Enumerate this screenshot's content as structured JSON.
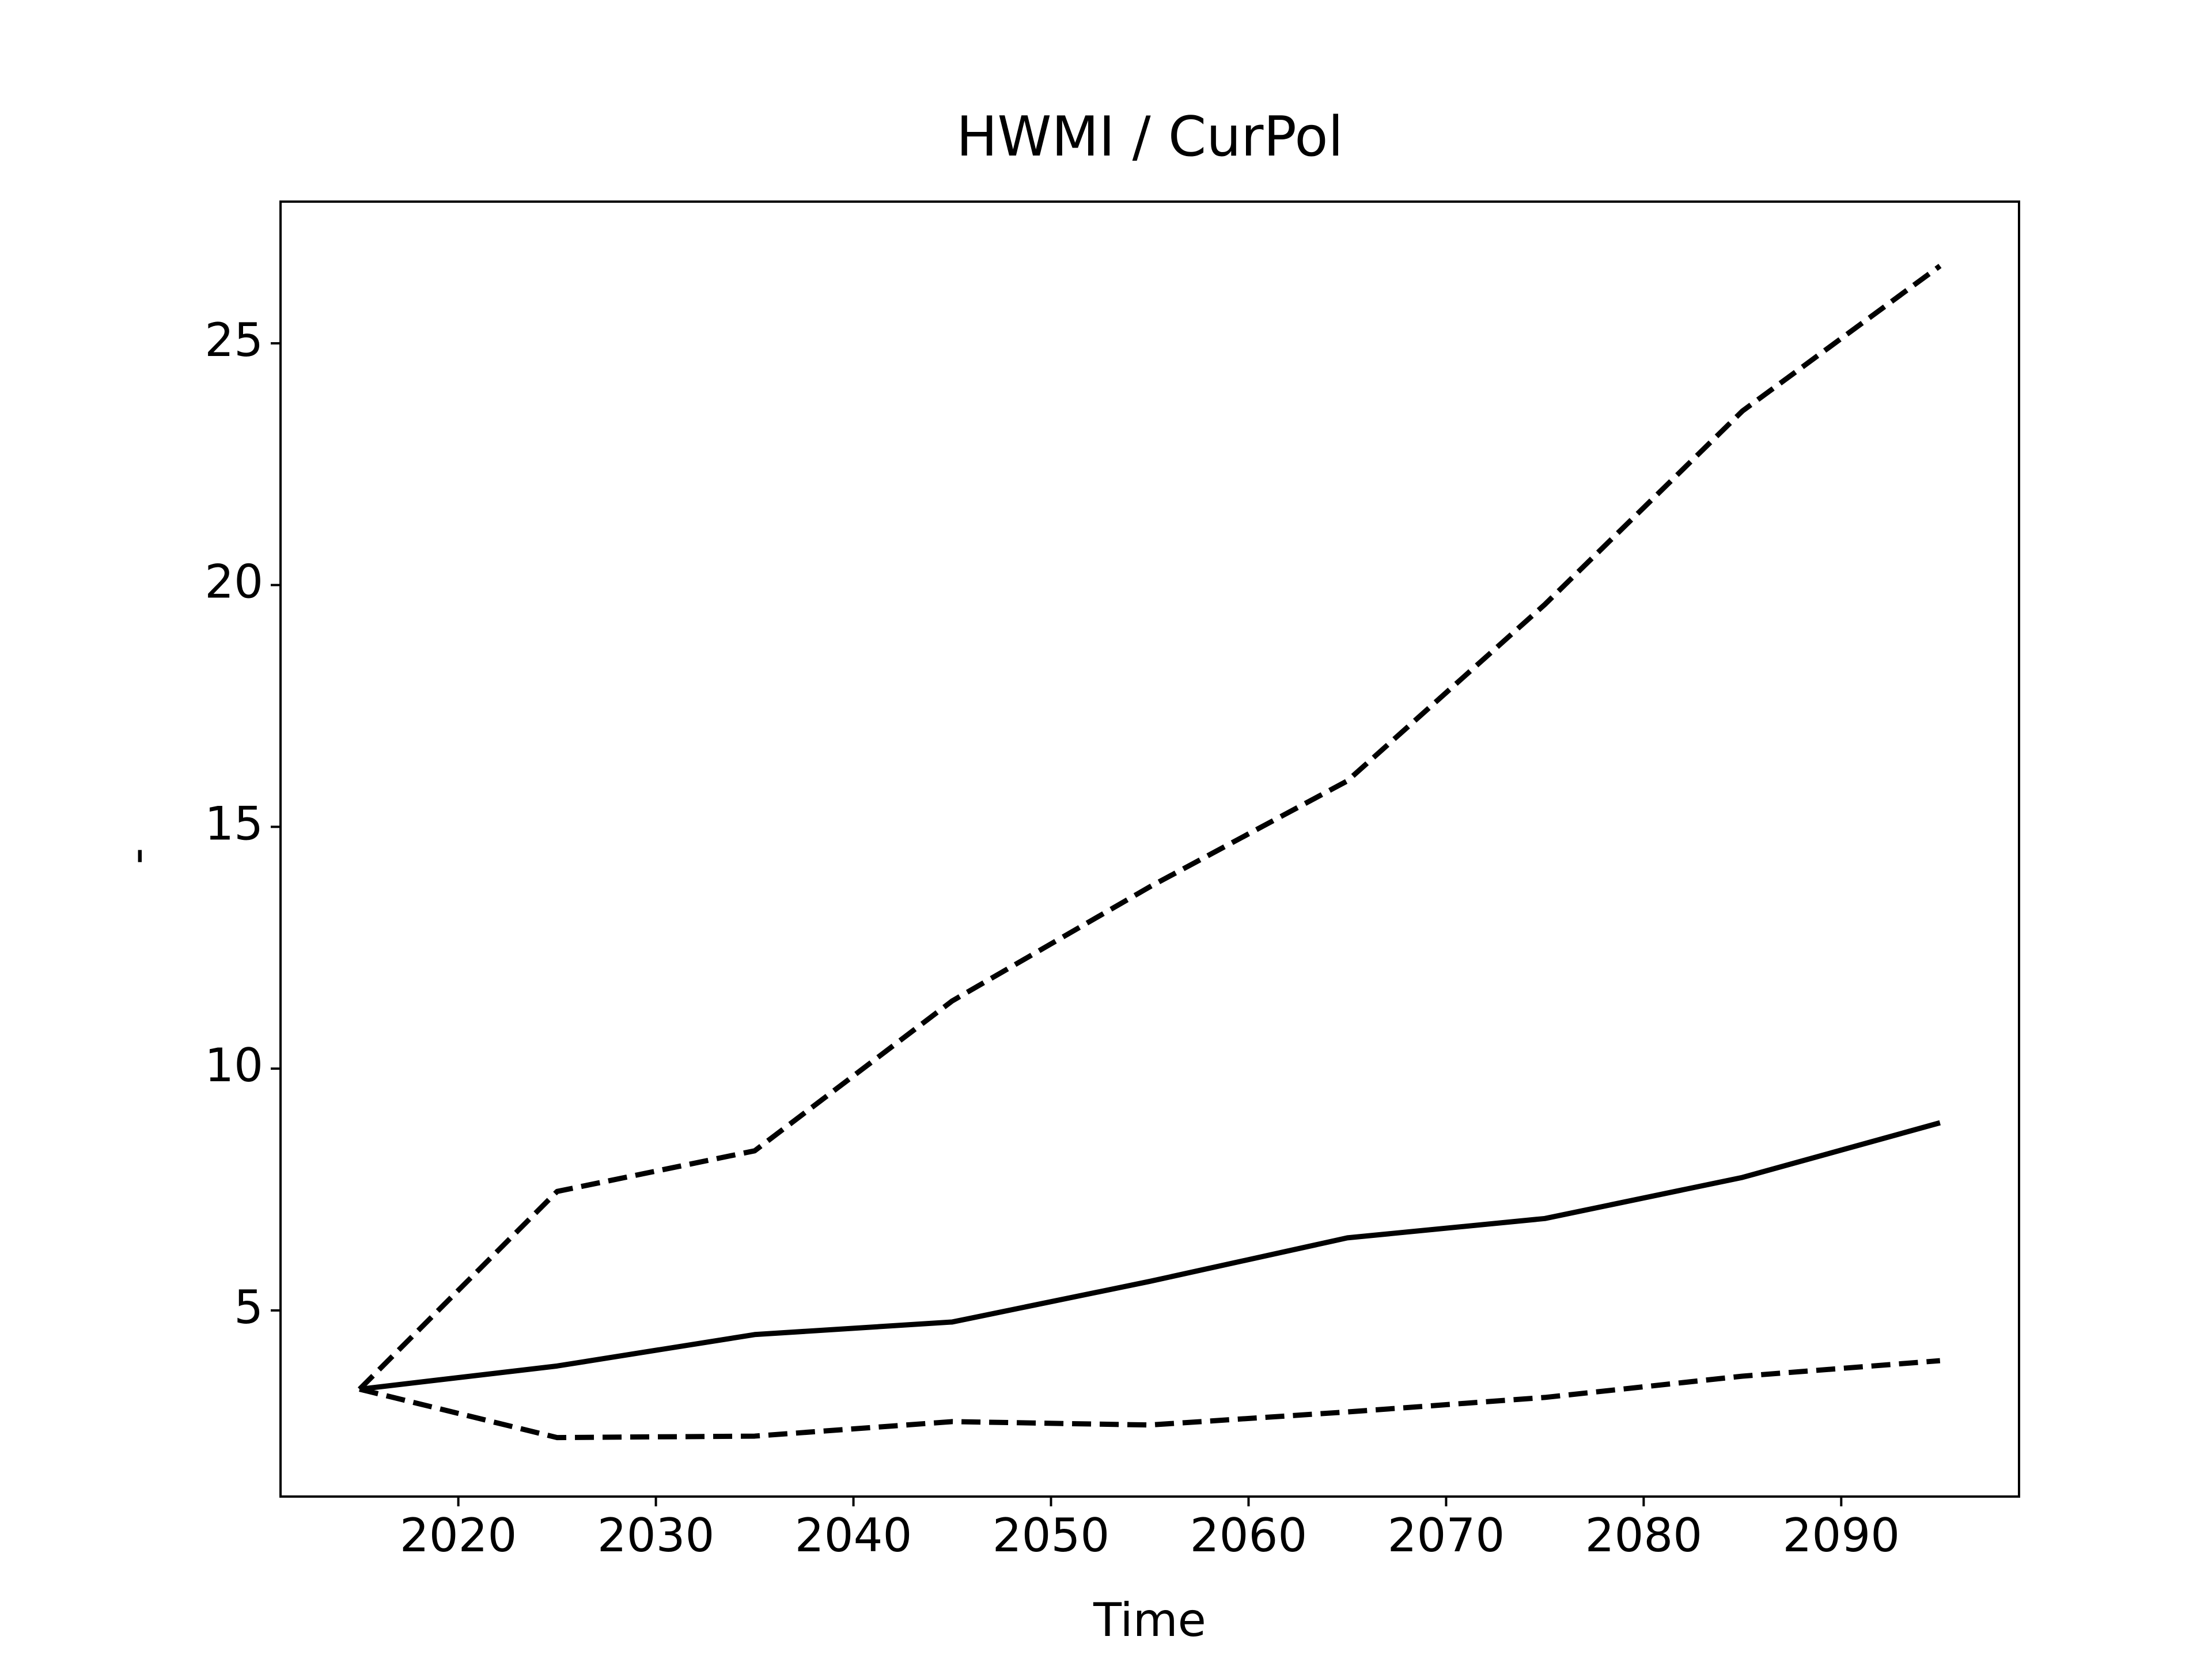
{
  "chart_data": {
    "type": "line",
    "title": "HWMI / CurPol",
    "x_label": "Time",
    "y_label": "-",
    "x": [
      2015,
      2025,
      2035,
      2045,
      2055,
      2065,
      2075,
      2085,
      2095
    ],
    "series": [
      {
        "color": "#000000",
        "dashed": false,
        "values": [
          3.37,
          3.85,
          4.5,
          4.76,
          5.6,
          6.5,
          6.9,
          7.75,
          8.88
        ]
      },
      {
        "color": "#000000",
        "dashed": true,
        "values": [
          3.37,
          7.46,
          8.3,
          11.4,
          13.76,
          15.95,
          19.6,
          23.6,
          26.6
        ]
      },
      {
        "color": "#000000",
        "dashed": true,
        "values": [
          3.37,
          2.37,
          2.4,
          2.7,
          2.63,
          2.9,
          3.2,
          3.64,
          3.96
        ]
      }
    ],
    "xlim": [
      2011,
      2099
    ],
    "xticks": [
      2020,
      2030,
      2040,
      2050,
      2060,
      2070,
      2080,
      2090
    ],
    "ylim": [
      1.15,
      27.93
    ],
    "yticks": [
      5,
      10,
      15,
      20,
      25
    ],
    "grid": false
  }
}
